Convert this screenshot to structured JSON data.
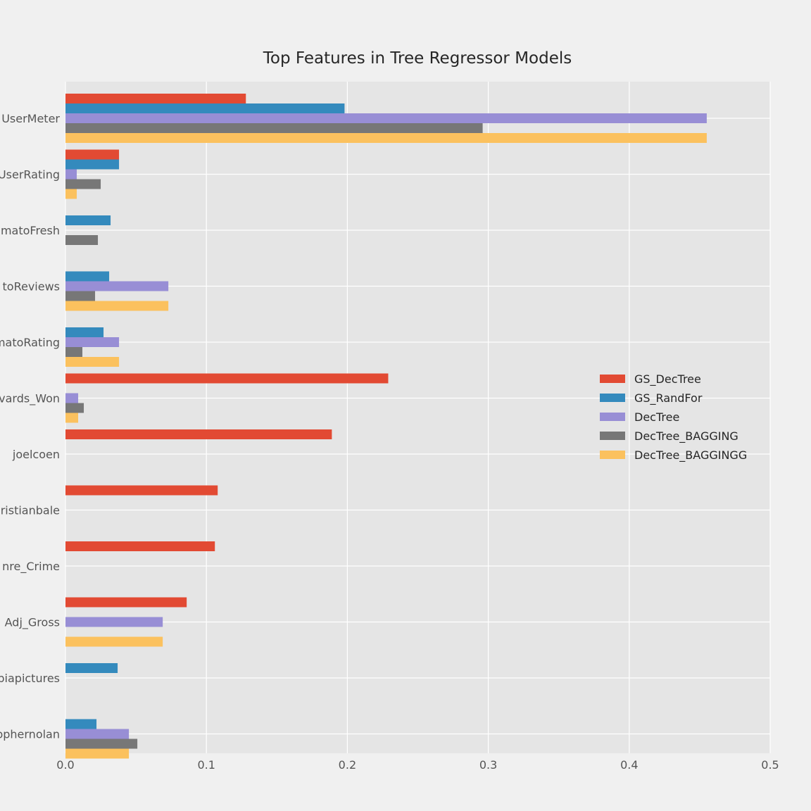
{
  "chart_data": {
    "type": "bar",
    "orientation": "horizontal",
    "title": "Top Features in Tree Regressor Models",
    "xlabel": "",
    "ylabel": "",
    "xlim": [
      0,
      0.5
    ],
    "x_ticks": [
      "0.0",
      "0.1",
      "0.2",
      "0.3",
      "0.4",
      "0.5"
    ],
    "grid": true,
    "legend_position": "center-right",
    "categories": [
      "UserMeter",
      "UserRating",
      "matoFresh",
      "toReviews",
      "matoRating",
      "vards_Won",
      "joelcoen",
      "ristianbale",
      "nre_Crime",
      "Adj_Gross",
      "biapictures",
      "pphernolan"
    ],
    "series": [
      {
        "name": "GS_DecTree",
        "color": "#e24a33",
        "values": [
          0.128,
          0.038,
          0,
          0,
          0,
          0.229,
          0.189,
          0.108,
          0.106,
          0.086,
          0,
          0
        ]
      },
      {
        "name": "GS_RandFor",
        "color": "#348abd",
        "values": [
          0.198,
          0.038,
          0.032,
          0.031,
          0.027,
          0,
          0,
          0,
          0,
          0,
          0.037,
          0.022
        ]
      },
      {
        "name": "DecTree",
        "color": "#988ed5",
        "values": [
          0.455,
          0.008,
          0,
          0.073,
          0.038,
          0.009,
          0,
          0,
          0,
          0.069,
          0,
          0.045
        ]
      },
      {
        "name": "DecTree_BAGGING",
        "color": "#777777",
        "values": [
          0.296,
          0.025,
          0.023,
          0.021,
          0.012,
          0.013,
          0,
          0,
          0,
          0,
          0,
          0.051
        ]
      },
      {
        "name": "DecTree_BAGGINGG",
        "color": "#fbc15e",
        "values": [
          0.455,
          0.008,
          0,
          0.073,
          0.038,
          0.009,
          0,
          0,
          0,
          0.069,
          0,
          0.045
        ]
      }
    ]
  },
  "colors": {
    "page_background": "#f0f0f0",
    "plot_background": "#e5e5e5",
    "grid": "#ffffff"
  }
}
